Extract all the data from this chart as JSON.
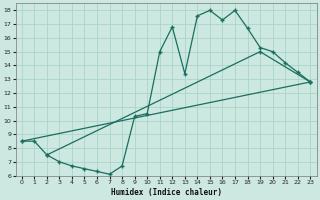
{
  "xlabel": "Humidex (Indice chaleur)",
  "bg_color": "#cde8e0",
  "line_color": "#1a6e60",
  "grid_color": "#aad4c8",
  "xlim": [
    -0.5,
    23.5
  ],
  "ylim": [
    6,
    18.5
  ],
  "xticks": [
    0,
    1,
    2,
    3,
    4,
    5,
    6,
    7,
    8,
    9,
    10,
    11,
    12,
    13,
    14,
    15,
    16,
    17,
    18,
    19,
    20,
    21,
    22,
    23
  ],
  "yticks": [
    6,
    7,
    8,
    9,
    10,
    11,
    12,
    13,
    14,
    15,
    16,
    17,
    18
  ],
  "curve": {
    "x": [
      0,
      1,
      2,
      3,
      4,
      5,
      6,
      7,
      8,
      9,
      10,
      11,
      12,
      13,
      14,
      15,
      16,
      17,
      18,
      19,
      20,
      21,
      22,
      23
    ],
    "y": [
      8.5,
      8.5,
      7.5,
      7.0,
      6.7,
      6.5,
      6.3,
      6.1,
      6.7,
      10.3,
      10.5,
      15.0,
      16.8,
      13.4,
      17.6,
      18.0,
      17.3,
      18.0,
      16.7,
      15.3,
      15.0,
      14.2,
      13.5,
      12.8
    ]
  },
  "line_bottom": {
    "x": [
      0,
      23
    ],
    "y": [
      8.5,
      12.8
    ]
  },
  "line_upper": {
    "x": [
      2,
      19,
      23
    ],
    "y": [
      7.5,
      15.0,
      12.8
    ]
  }
}
